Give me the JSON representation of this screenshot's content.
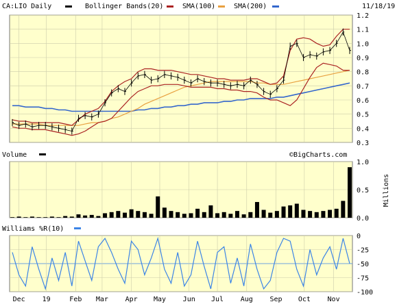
{
  "header": {
    "symbol_label": "CA:LIO Daily",
    "bollinger_label": "Bollinger Bands(20)",
    "sma100_label": "SMA(100)",
    "sma200_label": "SMA(200)",
    "date": "11/18/19"
  },
  "watermark": "©BigCharts.com",
  "colors": {
    "panel_bg": "#ffffcc",
    "grid": "#ccccaa",
    "price": "#000000",
    "bollinger": "#aa2222",
    "sma100": "#e8a040",
    "sma200": "#3366cc",
    "williams": "#3b84e6"
  },
  "chart_data": [
    {
      "type": "line",
      "panel": "price",
      "series": [
        {
          "name": "CA:LIO Daily",
          "style": "bar"
        },
        {
          "name": "Bollinger Bands(20)"
        },
        {
          "name": "SMA(100)"
        },
        {
          "name": "SMA(200)"
        }
      ],
      "x": [
        "2018-11-26",
        "2018-12-03",
        "2018-12-10",
        "2018-12-17",
        "2018-12-24",
        "2018-12-31",
        "2019-01-07",
        "2019-01-14",
        "2019-01-21",
        "2019-01-28",
        "2019-02-04",
        "2019-02-11",
        "2019-02-18",
        "2019-02-25",
        "2019-03-04",
        "2019-03-11",
        "2019-03-18",
        "2019-03-25",
        "2019-04-01",
        "2019-04-08",
        "2019-04-15",
        "2019-04-22",
        "2019-04-29",
        "2019-05-06",
        "2019-05-13",
        "2019-05-20",
        "2019-05-27",
        "2019-06-03",
        "2019-06-10",
        "2019-06-17",
        "2019-06-24",
        "2019-07-01",
        "2019-07-08",
        "2019-07-15",
        "2019-07-22",
        "2019-07-29",
        "2019-08-05",
        "2019-08-12",
        "2019-08-19",
        "2019-08-26",
        "2019-09-02",
        "2019-09-09",
        "2019-09-16",
        "2019-09-23",
        "2019-09-30",
        "2019-10-07",
        "2019-10-14",
        "2019-10-21",
        "2019-10-28",
        "2019-11-04",
        "2019-11-11",
        "2019-11-18"
      ],
      "close": [
        0.44,
        0.42,
        0.43,
        0.41,
        0.42,
        0.42,
        0.41,
        0.4,
        0.39,
        0.38,
        0.47,
        0.49,
        0.48,
        0.5,
        0.58,
        0.65,
        0.68,
        0.66,
        0.72,
        0.77,
        0.78,
        0.74,
        0.75,
        0.78,
        0.77,
        0.76,
        0.74,
        0.72,
        0.75,
        0.73,
        0.72,
        0.72,
        0.71,
        0.7,
        0.71,
        0.7,
        0.74,
        0.71,
        0.66,
        0.64,
        0.68,
        0.74,
        0.98,
        1.0,
        0.9,
        0.92,
        0.91,
        0.94,
        0.95,
        1.0,
        1.08,
        0.95
      ],
      "bb_upper": [
        0.46,
        0.45,
        0.45,
        0.44,
        0.44,
        0.44,
        0.44,
        0.44,
        0.43,
        0.42,
        0.46,
        0.5,
        0.52,
        0.54,
        0.59,
        0.66,
        0.7,
        0.73,
        0.75,
        0.8,
        0.82,
        0.82,
        0.81,
        0.81,
        0.81,
        0.8,
        0.79,
        0.78,
        0.78,
        0.77,
        0.76,
        0.75,
        0.75,
        0.74,
        0.74,
        0.74,
        0.75,
        0.75,
        0.73,
        0.71,
        0.72,
        0.77,
        0.95,
        1.03,
        1.04,
        1.03,
        1.0,
        0.98,
        0.99,
        1.05,
        1.1,
        1.1
      ],
      "bb_lower": [
        0.41,
        0.4,
        0.4,
        0.39,
        0.39,
        0.39,
        0.38,
        0.37,
        0.36,
        0.35,
        0.36,
        0.38,
        0.41,
        0.44,
        0.45,
        0.47,
        0.52,
        0.57,
        0.62,
        0.66,
        0.68,
        0.7,
        0.7,
        0.71,
        0.71,
        0.71,
        0.7,
        0.69,
        0.69,
        0.69,
        0.69,
        0.68,
        0.68,
        0.67,
        0.67,
        0.66,
        0.66,
        0.65,
        0.62,
        0.6,
        0.6,
        0.58,
        0.56,
        0.6,
        0.68,
        0.76,
        0.83,
        0.86,
        0.85,
        0.84,
        0.81,
        0.81
      ],
      "sma100": [
        0.43,
        0.43,
        0.43,
        0.43,
        0.43,
        0.42,
        0.42,
        0.42,
        0.42,
        0.42,
        0.42,
        0.43,
        0.44,
        0.44,
        0.45,
        0.47,
        0.48,
        0.5,
        0.52,
        0.54,
        0.57,
        0.59,
        0.61,
        0.63,
        0.65,
        0.67,
        0.69,
        0.7,
        0.71,
        0.72,
        0.73,
        0.73,
        0.73,
        0.73,
        0.73,
        0.73,
        0.73,
        0.72,
        0.72,
        0.71,
        0.71,
        0.71,
        0.72,
        0.73,
        0.74,
        0.75,
        0.76,
        0.77,
        0.78,
        0.79,
        0.8,
        0.81
      ],
      "sma200": [
        0.56,
        0.56,
        0.55,
        0.55,
        0.55,
        0.54,
        0.54,
        0.53,
        0.53,
        0.52,
        0.52,
        0.52,
        0.52,
        0.52,
        0.52,
        0.52,
        0.52,
        0.52,
        0.52,
        0.53,
        0.53,
        0.54,
        0.54,
        0.55,
        0.55,
        0.56,
        0.56,
        0.57,
        0.57,
        0.58,
        0.58,
        0.58,
        0.59,
        0.59,
        0.6,
        0.6,
        0.61,
        0.61,
        0.61,
        0.61,
        0.62,
        0.62,
        0.63,
        0.64,
        0.65,
        0.66,
        0.67,
        0.68,
        0.69,
        0.7,
        0.71,
        0.72
      ],
      "ylim": [
        0.3,
        1.2
      ],
      "yticks": [
        "1.2",
        "1.1",
        "1.0",
        "0.9",
        "0.8",
        "0.7",
        "0.6",
        "0.5",
        "0.4",
        "0.3"
      ],
      "ytick_values": [
        1.2,
        1.1,
        1.0,
        0.9,
        0.8,
        0.7,
        0.6,
        0.5,
        0.4,
        0.3
      ],
      "grid": true
    },
    {
      "type": "bar",
      "panel": "volume",
      "title": "Volume",
      "ylabel": "Millions",
      "x": [
        "2018-11-26",
        "2018-12-03",
        "2018-12-10",
        "2018-12-17",
        "2018-12-24",
        "2018-12-31",
        "2019-01-07",
        "2019-01-14",
        "2019-01-21",
        "2019-01-28",
        "2019-02-04",
        "2019-02-11",
        "2019-02-18",
        "2019-02-25",
        "2019-03-04",
        "2019-03-11",
        "2019-03-18",
        "2019-03-25",
        "2019-04-01",
        "2019-04-08",
        "2019-04-15",
        "2019-04-22",
        "2019-04-29",
        "2019-05-06",
        "2019-05-13",
        "2019-05-20",
        "2019-05-27",
        "2019-06-03",
        "2019-06-10",
        "2019-06-17",
        "2019-06-24",
        "2019-07-01",
        "2019-07-08",
        "2019-07-15",
        "2019-07-22",
        "2019-07-29",
        "2019-08-05",
        "2019-08-12",
        "2019-08-19",
        "2019-08-26",
        "2019-09-02",
        "2019-09-09",
        "2019-09-16",
        "2019-09-23",
        "2019-09-30",
        "2019-10-07",
        "2019-10-14",
        "2019-10-21",
        "2019-10-28",
        "2019-11-04",
        "2019-11-11",
        "2019-11-18"
      ],
      "values": [
        0.01,
        0.02,
        0.01,
        0.02,
        0.01,
        0.01,
        0.02,
        0.01,
        0.03,
        0.02,
        0.06,
        0.04,
        0.05,
        0.03,
        0.08,
        0.1,
        0.12,
        0.09,
        0.15,
        0.12,
        0.1,
        0.07,
        0.38,
        0.18,
        0.12,
        0.1,
        0.07,
        0.08,
        0.16,
        0.1,
        0.22,
        0.08,
        0.1,
        0.07,
        0.12,
        0.06,
        0.1,
        0.28,
        0.14,
        0.09,
        0.12,
        0.2,
        0.22,
        0.25,
        0.14,
        0.12,
        0.1,
        0.12,
        0.14,
        0.16,
        0.3,
        0.9
      ],
      "ylim": [
        0,
        1.0
      ],
      "yticks": [
        "1.0",
        "0.5",
        "0.0"
      ],
      "ytick_values": [
        1.0,
        0.5,
        0.0
      ]
    },
    {
      "type": "line",
      "panel": "williams",
      "title": "Williams %R(10)",
      "x": [
        "2018-11-26",
        "2018-12-03",
        "2018-12-10",
        "2018-12-17",
        "2018-12-24",
        "2018-12-31",
        "2019-01-07",
        "2019-01-14",
        "2019-01-21",
        "2019-01-28",
        "2019-02-04",
        "2019-02-11",
        "2019-02-18",
        "2019-02-25",
        "2019-03-04",
        "2019-03-11",
        "2019-03-18",
        "2019-03-25",
        "2019-04-01",
        "2019-04-08",
        "2019-04-15",
        "2019-04-22",
        "2019-04-29",
        "2019-05-06",
        "2019-05-13",
        "2019-05-20",
        "2019-05-27",
        "2019-06-03",
        "2019-06-10",
        "2019-06-17",
        "2019-06-24",
        "2019-07-01",
        "2019-07-08",
        "2019-07-15",
        "2019-07-22",
        "2019-07-29",
        "2019-08-05",
        "2019-08-12",
        "2019-08-19",
        "2019-08-26",
        "2019-09-02",
        "2019-09-09",
        "2019-09-16",
        "2019-09-23",
        "2019-09-30",
        "2019-10-07",
        "2019-10-14",
        "2019-10-21",
        "2019-10-28",
        "2019-11-04",
        "2019-11-11",
        "2019-11-18"
      ],
      "values": [
        -30,
        -70,
        -90,
        -20,
        -60,
        -95,
        -40,
        -80,
        -30,
        -90,
        -10,
        -45,
        -80,
        -20,
        -5,
        -30,
        -60,
        -85,
        -10,
        -25,
        -70,
        -40,
        -5,
        -60,
        -85,
        -30,
        -90,
        -70,
        -10,
        -55,
        -95,
        -30,
        -20,
        -85,
        -40,
        -90,
        -15,
        -60,
        -95,
        -80,
        -30,
        -5,
        -10,
        -60,
        -90,
        -25,
        -70,
        -40,
        -20,
        -60,
        -5,
        -50
      ],
      "ylim": [
        -100,
        0
      ],
      "yticks": [
        "0",
        "-25",
        "-50",
        "-75",
        "-100"
      ],
      "ytick_values": [
        0,
        -25,
        -50,
        -75,
        -100
      ]
    }
  ],
  "x_axis": {
    "labels": [
      {
        "text": "Dec",
        "date": "2018-12-03"
      },
      {
        "text": "19",
        "date": "2019-01-01"
      },
      {
        "text": "Feb",
        "date": "2019-02-01"
      },
      {
        "text": "Mar",
        "date": "2019-03-01"
      },
      {
        "text": "Apr",
        "date": "2019-04-01"
      },
      {
        "text": "May",
        "date": "2019-05-01"
      },
      {
        "text": "Jun",
        "date": "2019-06-01"
      },
      {
        "text": "Jul",
        "date": "2019-07-01"
      },
      {
        "text": "Aug",
        "date": "2019-08-01"
      },
      {
        "text": "Sep",
        "date": "2019-09-01"
      },
      {
        "text": "Oct",
        "date": "2019-10-01"
      },
      {
        "text": "Nov",
        "date": "2019-11-01"
      }
    ]
  }
}
